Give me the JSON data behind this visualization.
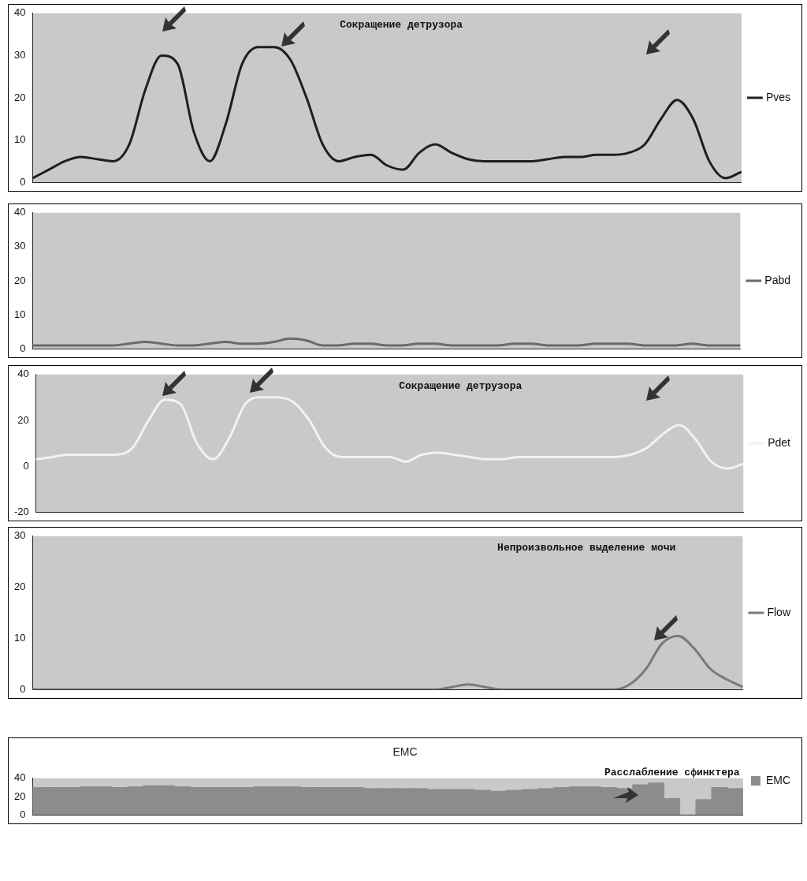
{
  "chart_data": [
    {
      "type": "line",
      "annotations": [
        "Сокращение детрузора"
      ],
      "categories": [
        null,
        null,
        null,
        null,
        null,
        null,
        null,
        null,
        null,
        null,
        null,
        null,
        null,
        null,
        null,
        null,
        null,
        null,
        null,
        null,
        null,
        null,
        null,
        null,
        null,
        null,
        null,
        null,
        null,
        null,
        null,
        null,
        null,
        null,
        null,
        null,
        null,
        null,
        null,
        null,
        null,
        null,
        null,
        null,
        null
      ],
      "series": [
        {
          "name": "Pves",
          "color": "#1e1e1e",
          "values": [
            1,
            3,
            5,
            6,
            5.5,
            5,
            9,
            22,
            30,
            28,
            12,
            5,
            14,
            28,
            32,
            32,
            29,
            20,
            9,
            5,
            6,
            6.5,
            4,
            3,
            7,
            9,
            7,
            5.5,
            5,
            5,
            5,
            5,
            5.5,
            6,
            6,
            6.5,
            6.5,
            7,
            9,
            15,
            19.5,
            15,
            5,
            1,
            2.5
          ]
        }
      ],
      "ylim": [
        0,
        40
      ],
      "yticks": [
        0,
        10,
        20,
        30,
        40
      ],
      "legend": "right",
      "marker": "none",
      "tick_labels": "y"
    },
    {
      "type": "line",
      "categories": [
        null,
        null,
        null,
        null,
        null,
        null,
        null,
        null,
        null,
        null,
        null,
        null,
        null,
        null,
        null,
        null,
        null,
        null,
        null,
        null,
        null,
        null,
        null,
        null,
        null,
        null,
        null,
        null,
        null,
        null,
        null,
        null,
        null,
        null,
        null,
        null,
        null,
        null,
        null,
        null,
        null,
        null,
        null,
        null,
        null
      ],
      "series": [
        {
          "name": "Pabd",
          "color": "#6a6a6a",
          "values": [
            1,
            1,
            1,
            1,
            1,
            1,
            1.5,
            2,
            1.5,
            1,
            1,
            1.5,
            2,
            1.5,
            1.5,
            2,
            3,
            2.5,
            1,
            1,
            1.5,
            1.5,
            1,
            1,
            1.5,
            1.5,
            1,
            1,
            1,
            1,
            1.5,
            1.5,
            1,
            1,
            1,
            1.5,
            1.5,
            1.5,
            1,
            1,
            1,
            1.5,
            1,
            1,
            1
          ]
        }
      ],
      "ylim": [
        0,
        40
      ],
      "yticks": [
        0,
        10,
        20,
        30,
        40
      ],
      "legend": "right",
      "marker": "none",
      "tick_labels": "y"
    },
    {
      "type": "line",
      "annotations": [
        "Сокращение детрузора"
      ],
      "categories": [
        null,
        null,
        null,
        null,
        null,
        null,
        null,
        null,
        null,
        null,
        null,
        null,
        null,
        null,
        null,
        null,
        null,
        null,
        null,
        null,
        null,
        null,
        null,
        null,
        null,
        null,
        null,
        null,
        null,
        null,
        null,
        null,
        null,
        null,
        null,
        null,
        null,
        null,
        null,
        null,
        null,
        null,
        null,
        null,
        null
      ],
      "series": [
        {
          "name": "Pdet",
          "color": "#f2f2f2",
          "values": [
            3,
            4,
            5,
            5,
            5,
            5,
            8,
            20,
            29,
            27,
            10,
            3,
            12,
            27,
            30,
            30,
            28,
            20,
            8,
            4,
            4,
            4,
            4,
            2,
            5,
            6,
            5,
            4,
            3,
            3,
            4,
            4,
            4,
            4,
            4,
            4,
            4,
            5,
            8,
            14,
            18,
            12,
            2,
            -1,
            1
          ]
        }
      ],
      "ylim": [
        -20,
        40
      ],
      "yticks": [
        -20,
        0,
        20,
        40
      ],
      "legend": "right",
      "marker": "none",
      "tick_labels": "y"
    },
    {
      "type": "line",
      "annotations": [
        "Непроизвольное выделение мочи"
      ],
      "categories": [
        null,
        null,
        null,
        null,
        null,
        null,
        null,
        null,
        null,
        null,
        null,
        null,
        null,
        null,
        null,
        null,
        null,
        null,
        null,
        null,
        null,
        null,
        null,
        null,
        null,
        null,
        null,
        null,
        null,
        null,
        null,
        null,
        null,
        null,
        null,
        null,
        null,
        null,
        null,
        null,
        null,
        null,
        null,
        null,
        null
      ],
      "series": [
        {
          "name": "Flow",
          "color": "#7a7a7a",
          "values": [
            0,
            0,
            0,
            0,
            0,
            0,
            0,
            0,
            0,
            0,
            0,
            0,
            0,
            0,
            0,
            0,
            0,
            0,
            0,
            0,
            0,
            0,
            0,
            0,
            0,
            0,
            0.5,
            1,
            0.5,
            0,
            0,
            0,
            0,
            0,
            0,
            0,
            0,
            1,
            4,
            9,
            10.5,
            8,
            4,
            2,
            0.5
          ]
        }
      ],
      "ylim": [
        0,
        30
      ],
      "yticks": [
        0,
        10,
        20,
        30
      ],
      "legend": "right",
      "marker": "none",
      "tick_labels": "y"
    },
    {
      "type": "bar",
      "title": "EMC",
      "annotations": [
        "Расслабление сфинктера"
      ],
      "categories": [
        null,
        null,
        null,
        null,
        null,
        null,
        null,
        null,
        null,
        null,
        null,
        null,
        null,
        null,
        null,
        null,
        null,
        null,
        null,
        null,
        null,
        null,
        null,
        null,
        null,
        null,
        null,
        null,
        null,
        null,
        null,
        null,
        null,
        null,
        null,
        null,
        null,
        null,
        null,
        null,
        null,
        null,
        null,
        null,
        null
      ],
      "series": [
        {
          "name": "EMC",
          "color": "#8c8c8c",
          "values": [
            30,
            30,
            30,
            31,
            31,
            30,
            31,
            32,
            32,
            31,
            30,
            30,
            30,
            30,
            31,
            31,
            31,
            30,
            30,
            30,
            30,
            29,
            29,
            29,
            29,
            28,
            28,
            28,
            27,
            26,
            27,
            28,
            29,
            30,
            31,
            31,
            30,
            29,
            33,
            35,
            18,
            0,
            17,
            30,
            29
          ]
        }
      ],
      "ylim": [
        0,
        40
      ],
      "yticks": [
        0,
        20,
        40
      ],
      "legend": "right",
      "tick_labels": "y"
    }
  ]
}
